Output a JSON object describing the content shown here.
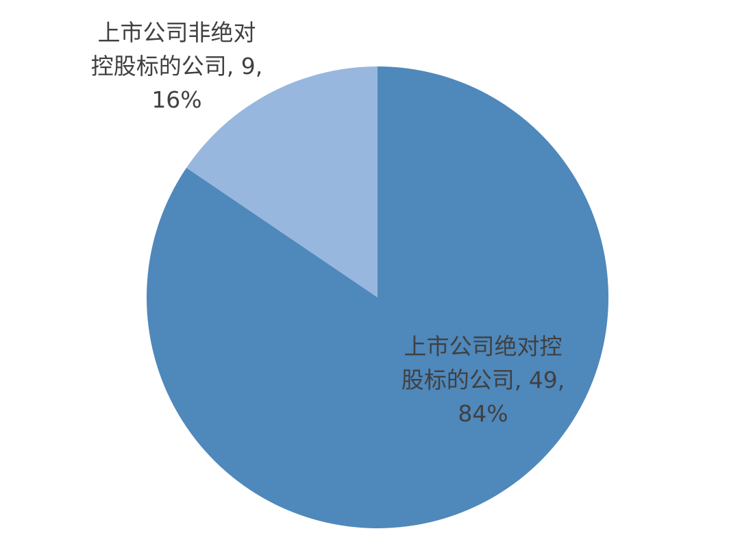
{
  "chart_data": {
    "type": "pie",
    "title": "",
    "start_angle": "12 o'clock, clockwise",
    "slices": [
      {
        "name": "上市公司绝对控股标的公司",
        "value": 49,
        "percent": "84%",
        "color": "#4f88bb"
      },
      {
        "name": "上市公司非绝对控股标的公司",
        "value": 9,
        "percent": "16%",
        "color": "#98b7de"
      }
    ],
    "legend": "none",
    "data_labels": "category, value, percentage"
  }
}
